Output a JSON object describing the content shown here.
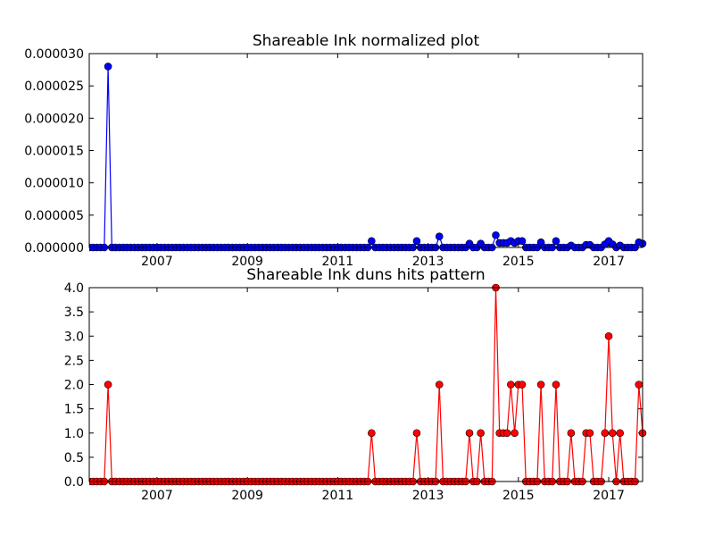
{
  "chart_data": [
    {
      "type": "line",
      "title": "Shareable Ink normalized plot",
      "color": "#0000ff",
      "x": [
        2005.5,
        2005.583,
        2005.667,
        2005.75,
        2005.833,
        2005.917,
        2006,
        2006.083,
        2006.167,
        2006.25,
        2006.333,
        2006.417,
        2006.5,
        2006.583,
        2006.667,
        2006.75,
        2006.833,
        2006.917,
        2007,
        2007.083,
        2007.167,
        2007.25,
        2007.333,
        2007.417,
        2007.5,
        2007.583,
        2007.667,
        2007.75,
        2007.833,
        2007.917,
        2008,
        2008.083,
        2008.167,
        2008.25,
        2008.333,
        2008.417,
        2008.5,
        2008.583,
        2008.667,
        2008.75,
        2008.833,
        2008.917,
        2009,
        2009.083,
        2009.167,
        2009.25,
        2009.333,
        2009.417,
        2009.5,
        2009.583,
        2009.667,
        2009.75,
        2009.833,
        2009.917,
        2010,
        2010.083,
        2010.167,
        2010.25,
        2010.333,
        2010.417,
        2010.5,
        2010.583,
        2010.667,
        2010.75,
        2010.833,
        2010.917,
        2011,
        2011.083,
        2011.167,
        2011.25,
        2011.333,
        2011.417,
        2011.5,
        2011.583,
        2011.667,
        2011.75,
        2011.833,
        2011.917,
        2012,
        2012.083,
        2012.167,
        2012.25,
        2012.333,
        2012.417,
        2012.5,
        2012.583,
        2012.667,
        2012.75,
        2012.833,
        2012.917,
        2013,
        2013.083,
        2013.167,
        2013.25,
        2013.333,
        2013.417,
        2013.5,
        2013.583,
        2013.667,
        2013.75,
        2013.833,
        2013.917,
        2014,
        2014.083,
        2014.167,
        2014.25,
        2014.333,
        2014.417,
        2014.5,
        2014.583,
        2014.667,
        2014.75,
        2014.833,
        2014.917,
        2015,
        2015.083,
        2015.167,
        2015.25,
        2015.333,
        2015.417,
        2015.5,
        2015.583,
        2015.667,
        2015.75,
        2015.833,
        2015.917,
        2016,
        2016.083,
        2016.167,
        2016.25,
        2016.333,
        2016.417,
        2016.5,
        2016.583,
        2016.667,
        2016.75,
        2016.833,
        2016.917,
        2017,
        2017.083,
        2017.167,
        2017.25,
        2017.333,
        2017.417,
        2017.5,
        2017.583,
        2017.667,
        2017.75
      ],
      "values": [
        0,
        0,
        0,
        0,
        0,
        2.8e-05,
        0,
        0,
        0,
        0,
        0,
        0,
        0,
        0,
        0,
        0,
        0,
        0,
        0,
        0,
        0,
        0,
        0,
        0,
        0,
        0,
        0,
        0,
        0,
        0,
        0,
        0,
        0,
        0,
        0,
        0,
        0,
        0,
        0,
        0,
        0,
        0,
        0,
        0,
        0,
        0,
        0,
        0,
        0,
        0,
        0,
        0,
        0,
        0,
        0,
        0,
        0,
        0,
        0,
        0,
        0,
        0,
        0,
        0,
        0,
        0,
        0,
        0,
        0,
        0,
        0,
        0,
        0,
        0,
        0,
        1e-06,
        0,
        0,
        0,
        0,
        0,
        0,
        0,
        0,
        0,
        0,
        0,
        1e-06,
        0,
        0,
        0,
        0,
        0,
        1.7e-06,
        0,
        0,
        0,
        0,
        0,
        0,
        0,
        6e-07,
        0,
        0,
        6e-07,
        0,
        0,
        0,
        1.9e-06,
        7e-07,
        7e-07,
        7e-07,
        1e-06,
        7e-07,
        1e-06,
        1e-06,
        0,
        0,
        0,
        0,
        8e-07,
        0,
        0,
        0,
        1e-06,
        0,
        0,
        0,
        3e-07,
        0,
        0,
        0,
        4e-07,
        4e-07,
        0,
        0,
        0,
        5e-07,
        1e-06,
        5e-07,
        0,
        3e-07,
        0,
        0,
        0,
        0,
        8e-07,
        6e-07
      ],
      "xlim": [
        2005.5,
        2017.75
      ],
      "xticks": [
        2007,
        2009,
        2011,
        2013,
        2015,
        2017
      ],
      "ylim": [
        0,
        3e-05
      ],
      "yticks": [
        {
          "value": 0,
          "label": "0.000000"
        },
        {
          "value": 5e-06,
          "label": "0.000005"
        },
        {
          "value": 1e-05,
          "label": "0.000010"
        },
        {
          "value": 1.5e-05,
          "label": "0.000015"
        },
        {
          "value": 2e-05,
          "label": "0.000020"
        },
        {
          "value": 2.5e-05,
          "label": "0.000025"
        },
        {
          "value": 3e-05,
          "label": "0.000030"
        }
      ]
    },
    {
      "type": "line",
      "title": "Shareable Ink duns hits pattern",
      "color": "#ff0000",
      "x": [
        2005.5,
        2005.583,
        2005.667,
        2005.75,
        2005.833,
        2005.917,
        2006,
        2006.083,
        2006.167,
        2006.25,
        2006.333,
        2006.417,
        2006.5,
        2006.583,
        2006.667,
        2006.75,
        2006.833,
        2006.917,
        2007,
        2007.083,
        2007.167,
        2007.25,
        2007.333,
        2007.417,
        2007.5,
        2007.583,
        2007.667,
        2007.75,
        2007.833,
        2007.917,
        2008,
        2008.083,
        2008.167,
        2008.25,
        2008.333,
        2008.417,
        2008.5,
        2008.583,
        2008.667,
        2008.75,
        2008.833,
        2008.917,
        2009,
        2009.083,
        2009.167,
        2009.25,
        2009.333,
        2009.417,
        2009.5,
        2009.583,
        2009.667,
        2009.75,
        2009.833,
        2009.917,
        2010,
        2010.083,
        2010.167,
        2010.25,
        2010.333,
        2010.417,
        2010.5,
        2010.583,
        2010.667,
        2010.75,
        2010.833,
        2010.917,
        2011,
        2011.083,
        2011.167,
        2011.25,
        2011.333,
        2011.417,
        2011.5,
        2011.583,
        2011.667,
        2011.75,
        2011.833,
        2011.917,
        2012,
        2012.083,
        2012.167,
        2012.25,
        2012.333,
        2012.417,
        2012.5,
        2012.583,
        2012.667,
        2012.75,
        2012.833,
        2012.917,
        2013,
        2013.083,
        2013.167,
        2013.25,
        2013.333,
        2013.417,
        2013.5,
        2013.583,
        2013.667,
        2013.75,
        2013.833,
        2013.917,
        2014,
        2014.083,
        2014.167,
        2014.25,
        2014.333,
        2014.417,
        2014.5,
        2014.583,
        2014.667,
        2014.75,
        2014.833,
        2014.917,
        2015,
        2015.083,
        2015.167,
        2015.25,
        2015.333,
        2015.417,
        2015.5,
        2015.583,
        2015.667,
        2015.75,
        2015.833,
        2015.917,
        2016,
        2016.083,
        2016.167,
        2016.25,
        2016.333,
        2016.417,
        2016.5,
        2016.583,
        2016.667,
        2016.75,
        2016.833,
        2016.917,
        2017,
        2017.083,
        2017.167,
        2017.25,
        2017.333,
        2017.417,
        2017.5,
        2017.583,
        2017.667,
        2017.75
      ],
      "values": [
        0,
        0,
        0,
        0,
        0,
        2,
        0,
        0,
        0,
        0,
        0,
        0,
        0,
        0,
        0,
        0,
        0,
        0,
        0,
        0,
        0,
        0,
        0,
        0,
        0,
        0,
        0,
        0,
        0,
        0,
        0,
        0,
        0,
        0,
        0,
        0,
        0,
        0,
        0,
        0,
        0,
        0,
        0,
        0,
        0,
        0,
        0,
        0,
        0,
        0,
        0,
        0,
        0,
        0,
        0,
        0,
        0,
        0,
        0,
        0,
        0,
        0,
        0,
        0,
        0,
        0,
        0,
        0,
        0,
        0,
        0,
        0,
        0,
        0,
        0,
        1,
        0,
        0,
        0,
        0,
        0,
        0,
        0,
        0,
        0,
        0,
        0,
        1,
        0,
        0,
        0,
        0,
        0,
        2,
        0,
        0,
        0,
        0,
        0,
        0,
        0,
        1,
        0,
        0,
        1,
        0,
        0,
        0,
        4,
        1,
        1,
        1,
        2,
        1,
        2,
        2,
        0,
        0,
        0,
        0,
        2,
        0,
        0,
        0,
        2,
        0,
        0,
        0,
        1,
        0,
        0,
        0,
        1,
        1,
        0,
        0,
        0,
        1,
        3,
        1,
        0,
        1,
        0,
        0,
        0,
        0,
        2,
        1
      ],
      "xlim": [
        2005.5,
        2017.75
      ],
      "xticks": [
        2007,
        2009,
        2011,
        2013,
        2015,
        2017
      ],
      "ylim": [
        0,
        4
      ],
      "yticks": [
        {
          "value": 0,
          "label": "0.0"
        },
        {
          "value": 0.5,
          "label": "0.5"
        },
        {
          "value": 1,
          "label": "1.0"
        },
        {
          "value": 1.5,
          "label": "1.5"
        },
        {
          "value": 2,
          "label": "2.0"
        },
        {
          "value": 2.5,
          "label": "2.5"
        },
        {
          "value": 3,
          "label": "3.0"
        },
        {
          "value": 3.5,
          "label": "3.5"
        },
        {
          "value": 4,
          "label": "4.0"
        }
      ]
    }
  ]
}
